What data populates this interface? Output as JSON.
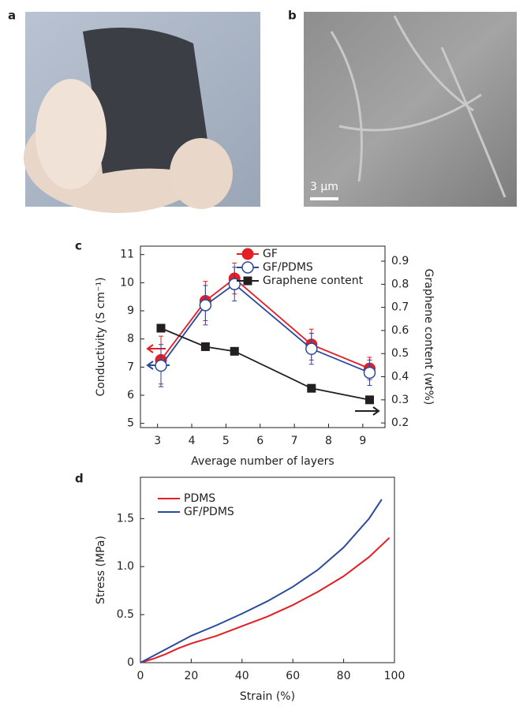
{
  "panel_labels": [
    "a",
    "b"
  ],
  "scale_bar": "3 µm",
  "chart_data": [
    {
      "type": "line",
      "label": "c",
      "x_label": "Average number of layers",
      "y_label": "Conductivity (S cm⁻¹)",
      "y2_label": "Graphene content (wt%)",
      "xlim": [
        2.5,
        9.65
      ],
      "xticks": [
        3,
        4,
        5,
        6,
        7,
        8,
        9
      ],
      "ylim": [
        4.85,
        11.3
      ],
      "yticks": [
        5,
        6,
        7,
        8,
        9,
        10,
        11
      ],
      "y2lim": [
        0.18,
        0.965
      ],
      "y2ticks": [
        0.2,
        0.3,
        0.4,
        0.5,
        0.6,
        0.7,
        0.8,
        0.9
      ],
      "series": [
        {
          "name": "GF",
          "color": "#e31e24",
          "marker": "filled-circle",
          "x": [
            3.1,
            4.4,
            5.25,
            7.5,
            9.2
          ],
          "values": [
            7.25,
            9.35,
            10.15,
            7.8,
            6.95
          ],
          "errors": [
            0.85,
            0.7,
            0.55,
            0.55,
            0.4
          ]
        },
        {
          "name": "GF/PDMS",
          "color": "#2b4a9b",
          "marker": "open-circle",
          "x": [
            3.1,
            4.4,
            5.25,
            7.5,
            9.2
          ],
          "values": [
            7.05,
            9.2,
            9.95,
            7.65,
            6.8
          ],
          "errors": [
            0.75,
            0.7,
            0.6,
            0.55,
            0.45
          ]
        },
        {
          "name": "Graphene  content",
          "color": "#231f20",
          "marker": "square",
          "axis": "y2",
          "x": [
            3.1,
            4.4,
            5.25,
            7.5,
            9.2
          ],
          "values": [
            0.61,
            0.53,
            0.51,
            0.35,
            0.3
          ]
        }
      ]
    },
    {
      "type": "line",
      "label": "d",
      "x_label": "Strain (%)",
      "y_label": "Stress (MPa)",
      "xlim": [
        0,
        100
      ],
      "xticks": [
        0,
        20,
        40,
        60,
        80,
        100
      ],
      "ylim": [
        0,
        1.93
      ],
      "yticks": [
        0,
        0.5,
        {
          "value": 1,
          "label": "1.0"
        },
        1.5
      ],
      "series": [
        {
          "name": "PDMS",
          "color": "#e31e24",
          "x": [
            0,
            5,
            10,
            15,
            20,
            30,
            40,
            50,
            60,
            70,
            80,
            90,
            98
          ],
          "values": [
            0,
            0.04,
            0.09,
            0.15,
            0.2,
            0.28,
            0.38,
            0.48,
            0.6,
            0.74,
            0.9,
            1.1,
            1.3
          ]
        },
        {
          "name": "GF/PDMS",
          "color": "#2b4a9b",
          "x": [
            0,
            10,
            20,
            30,
            40,
            50,
            60,
            70,
            80,
            90,
            95
          ],
          "values": [
            0,
            0.14,
            0.28,
            0.39,
            0.51,
            0.64,
            0.79,
            0.97,
            1.2,
            1.5,
            1.7
          ]
        }
      ]
    }
  ]
}
